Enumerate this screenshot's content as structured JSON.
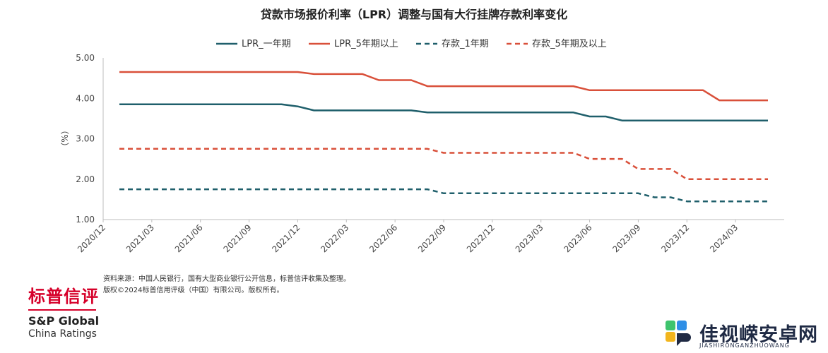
{
  "chart_data": {
    "type": "line",
    "title": "贷款市场报价利率（LPR）调整与国有大行挂牌存款利率变化",
    "ylabel": "（%）",
    "xlabel": "",
    "ylim": [
      1.0,
      5.0
    ],
    "yticks": [
      "5.00",
      "4.00",
      "3.00",
      "2.00",
      "1.00"
    ],
    "ytick_values": [
      5.0,
      4.0,
      3.0,
      2.0,
      1.0
    ],
    "x_tick_labels": [
      "2020/12",
      "2021/03",
      "2021/06",
      "2021/09",
      "2021/12",
      "2022/03",
      "2022/06",
      "2022/09",
      "2022/12",
      "2023/03",
      "2023/06",
      "2023/09",
      "2023/12",
      "2024/03"
    ],
    "x_months": [
      "2021/01",
      "2021/02",
      "2021/03",
      "2021/04",
      "2021/05",
      "2021/06",
      "2021/07",
      "2021/08",
      "2021/09",
      "2021/10",
      "2021/11",
      "2021/12",
      "2022/01",
      "2022/02",
      "2022/03",
      "2022/04",
      "2022/05",
      "2022/06",
      "2022/07",
      "2022/08",
      "2022/09",
      "2022/10",
      "2022/11",
      "2022/12",
      "2023/01",
      "2023/02",
      "2023/03",
      "2023/04",
      "2023/05",
      "2023/06",
      "2023/07",
      "2023/08",
      "2023/09",
      "2023/10",
      "2023/11",
      "2023/12",
      "2024/01",
      "2024/02",
      "2024/03",
      "2024/04",
      "2024/05"
    ],
    "legend_position": "top",
    "grid": false,
    "series": [
      {
        "name": "LPR_一年期",
        "color": "#1f5f6b",
        "dashed": false,
        "values": [
          3.85,
          3.85,
          3.85,
          3.85,
          3.85,
          3.85,
          3.85,
          3.85,
          3.85,
          3.85,
          3.85,
          3.8,
          3.7,
          3.7,
          3.7,
          3.7,
          3.7,
          3.7,
          3.7,
          3.65,
          3.65,
          3.65,
          3.65,
          3.65,
          3.65,
          3.65,
          3.65,
          3.65,
          3.65,
          3.55,
          3.55,
          3.45,
          3.45,
          3.45,
          3.45,
          3.45,
          3.45,
          3.45,
          3.45,
          3.45,
          3.45
        ]
      },
      {
        "name": "LPR_5年期以上",
        "color": "#d9503a",
        "dashed": false,
        "values": [
          4.65,
          4.65,
          4.65,
          4.65,
          4.65,
          4.65,
          4.65,
          4.65,
          4.65,
          4.65,
          4.65,
          4.65,
          4.6,
          4.6,
          4.6,
          4.6,
          4.45,
          4.45,
          4.45,
          4.3,
          4.3,
          4.3,
          4.3,
          4.3,
          4.3,
          4.3,
          4.3,
          4.3,
          4.3,
          4.2,
          4.2,
          4.2,
          4.2,
          4.2,
          4.2,
          4.2,
          4.2,
          3.95,
          3.95,
          3.95,
          3.95
        ]
      },
      {
        "name": "存款_1年期",
        "color": "#1f5f6b",
        "dashed": true,
        "values": [
          1.75,
          1.75,
          1.75,
          1.75,
          1.75,
          1.75,
          1.75,
          1.75,
          1.75,
          1.75,
          1.75,
          1.75,
          1.75,
          1.75,
          1.75,
          1.75,
          1.75,
          1.75,
          1.75,
          1.75,
          1.65,
          1.65,
          1.65,
          1.65,
          1.65,
          1.65,
          1.65,
          1.65,
          1.65,
          1.65,
          1.65,
          1.65,
          1.65,
          1.55,
          1.55,
          1.45,
          1.45,
          1.45,
          1.45,
          1.45,
          1.45
        ]
      },
      {
        "name": "存款_5年期及以上",
        "color": "#d9503a",
        "dashed": true,
        "values": [
          2.75,
          2.75,
          2.75,
          2.75,
          2.75,
          2.75,
          2.75,
          2.75,
          2.75,
          2.75,
          2.75,
          2.75,
          2.75,
          2.75,
          2.75,
          2.75,
          2.75,
          2.75,
          2.75,
          2.75,
          2.65,
          2.65,
          2.65,
          2.65,
          2.65,
          2.65,
          2.65,
          2.65,
          2.65,
          2.5,
          2.5,
          2.5,
          2.25,
          2.25,
          2.25,
          2.0,
          2.0,
          2.0,
          2.0,
          2.0,
          2.0
        ]
      }
    ]
  },
  "source": {
    "line1": "资料来源：中国人民银行，国有大型商业银行公开信息，标普信评收集及整理。",
    "line2": "版权©2024标普信用评级（中国）有限公司。版权所有。"
  },
  "brand": {
    "cn": "标普信评",
    "en1": "S&P Global",
    "en2": "China Ratings",
    "color": "#d6002a"
  },
  "watermark": {
    "cn": "佳视嵘安卓网",
    "en": "JIASHIRONGANZHUOWANG"
  }
}
